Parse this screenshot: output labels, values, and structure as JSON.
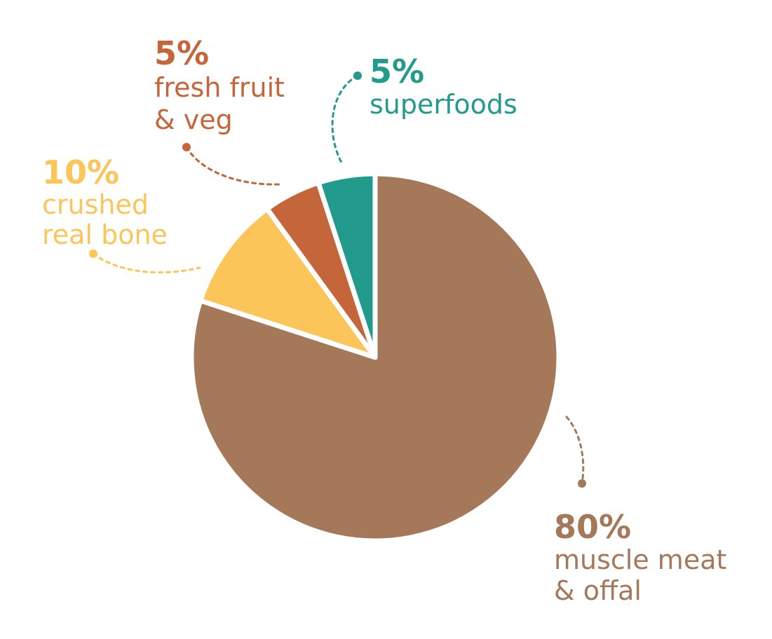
{
  "chart_data": {
    "type": "pie",
    "categories": [
      "muscle meat\n& offal",
      "crushed\nreal bone",
      "fresh fruit\n& veg",
      "superfoods"
    ],
    "values": [
      80,
      10,
      5,
      5
    ],
    "value_labels": [
      "80%",
      "10%",
      "5%",
      "5%"
    ],
    "colors": [
      "#a5785a",
      "#fcc55a",
      "#c5653a",
      "#239b8c"
    ]
  }
}
